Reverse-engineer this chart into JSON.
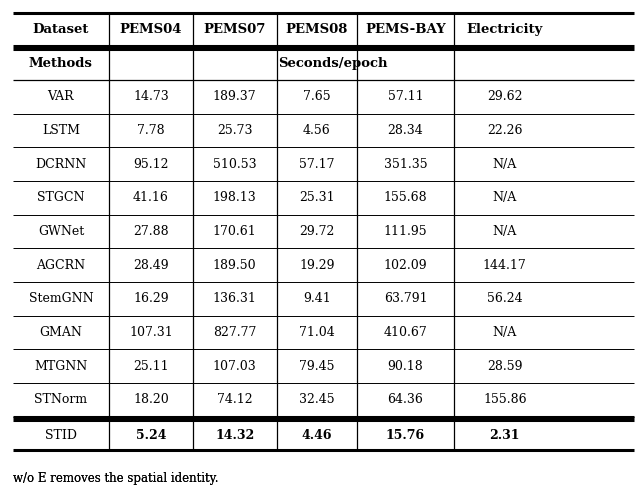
{
  "header_row1": [
    "Dataset",
    "PEMS04",
    "PEMS07",
    "PEMS08",
    "PEMS-BAY",
    "Electricity"
  ],
  "header_row2": [
    "Methods",
    "Seconds/epoch",
    "",
    "",
    "",
    ""
  ],
  "rows": [
    [
      "VAR",
      "14.73",
      "189.37",
      "7.65",
      "57.11",
      "29.62"
    ],
    [
      "LSTM",
      "7.78",
      "25.73",
      "4.56",
      "28.34",
      "22.26"
    ],
    [
      "DCRNN",
      "95.12",
      "510.53",
      "57.17",
      "351.35",
      "N/A"
    ],
    [
      "STGCN",
      "41.16",
      "198.13",
      "25.31",
      "155.68",
      "N/A"
    ],
    [
      "GWNet",
      "27.88",
      "170.61",
      "29.72",
      "111.95",
      "N/A"
    ],
    [
      "AGCRN",
      "28.49",
      "189.50",
      "19.29",
      "102.09",
      "144.17"
    ],
    [
      "StemGNN",
      "16.29",
      "136.31",
      "9.41",
      "63.791",
      "56.24"
    ],
    [
      "GMAN",
      "107.31",
      "827.77",
      "71.04",
      "410.67",
      "N/A"
    ],
    [
      "MTGNN",
      "25.11",
      "107.03",
      "79.45",
      "90.18",
      "28.59"
    ],
    [
      "STNorm",
      "18.20",
      "74.12",
      "32.45",
      "64.36",
      "155.86"
    ]
  ],
  "last_row": [
    "STID",
    "5.24",
    "14.32",
    "4.46",
    "15.76",
    "2.31"
  ],
  "figsize": [
    6.4,
    5.03
  ],
  "dpi": 100,
  "background": "#ffffff",
  "text_color": "#000000",
  "font_size_header": 9.5,
  "font_size_data": 9.0,
  "font_size_caption": 8.5
}
